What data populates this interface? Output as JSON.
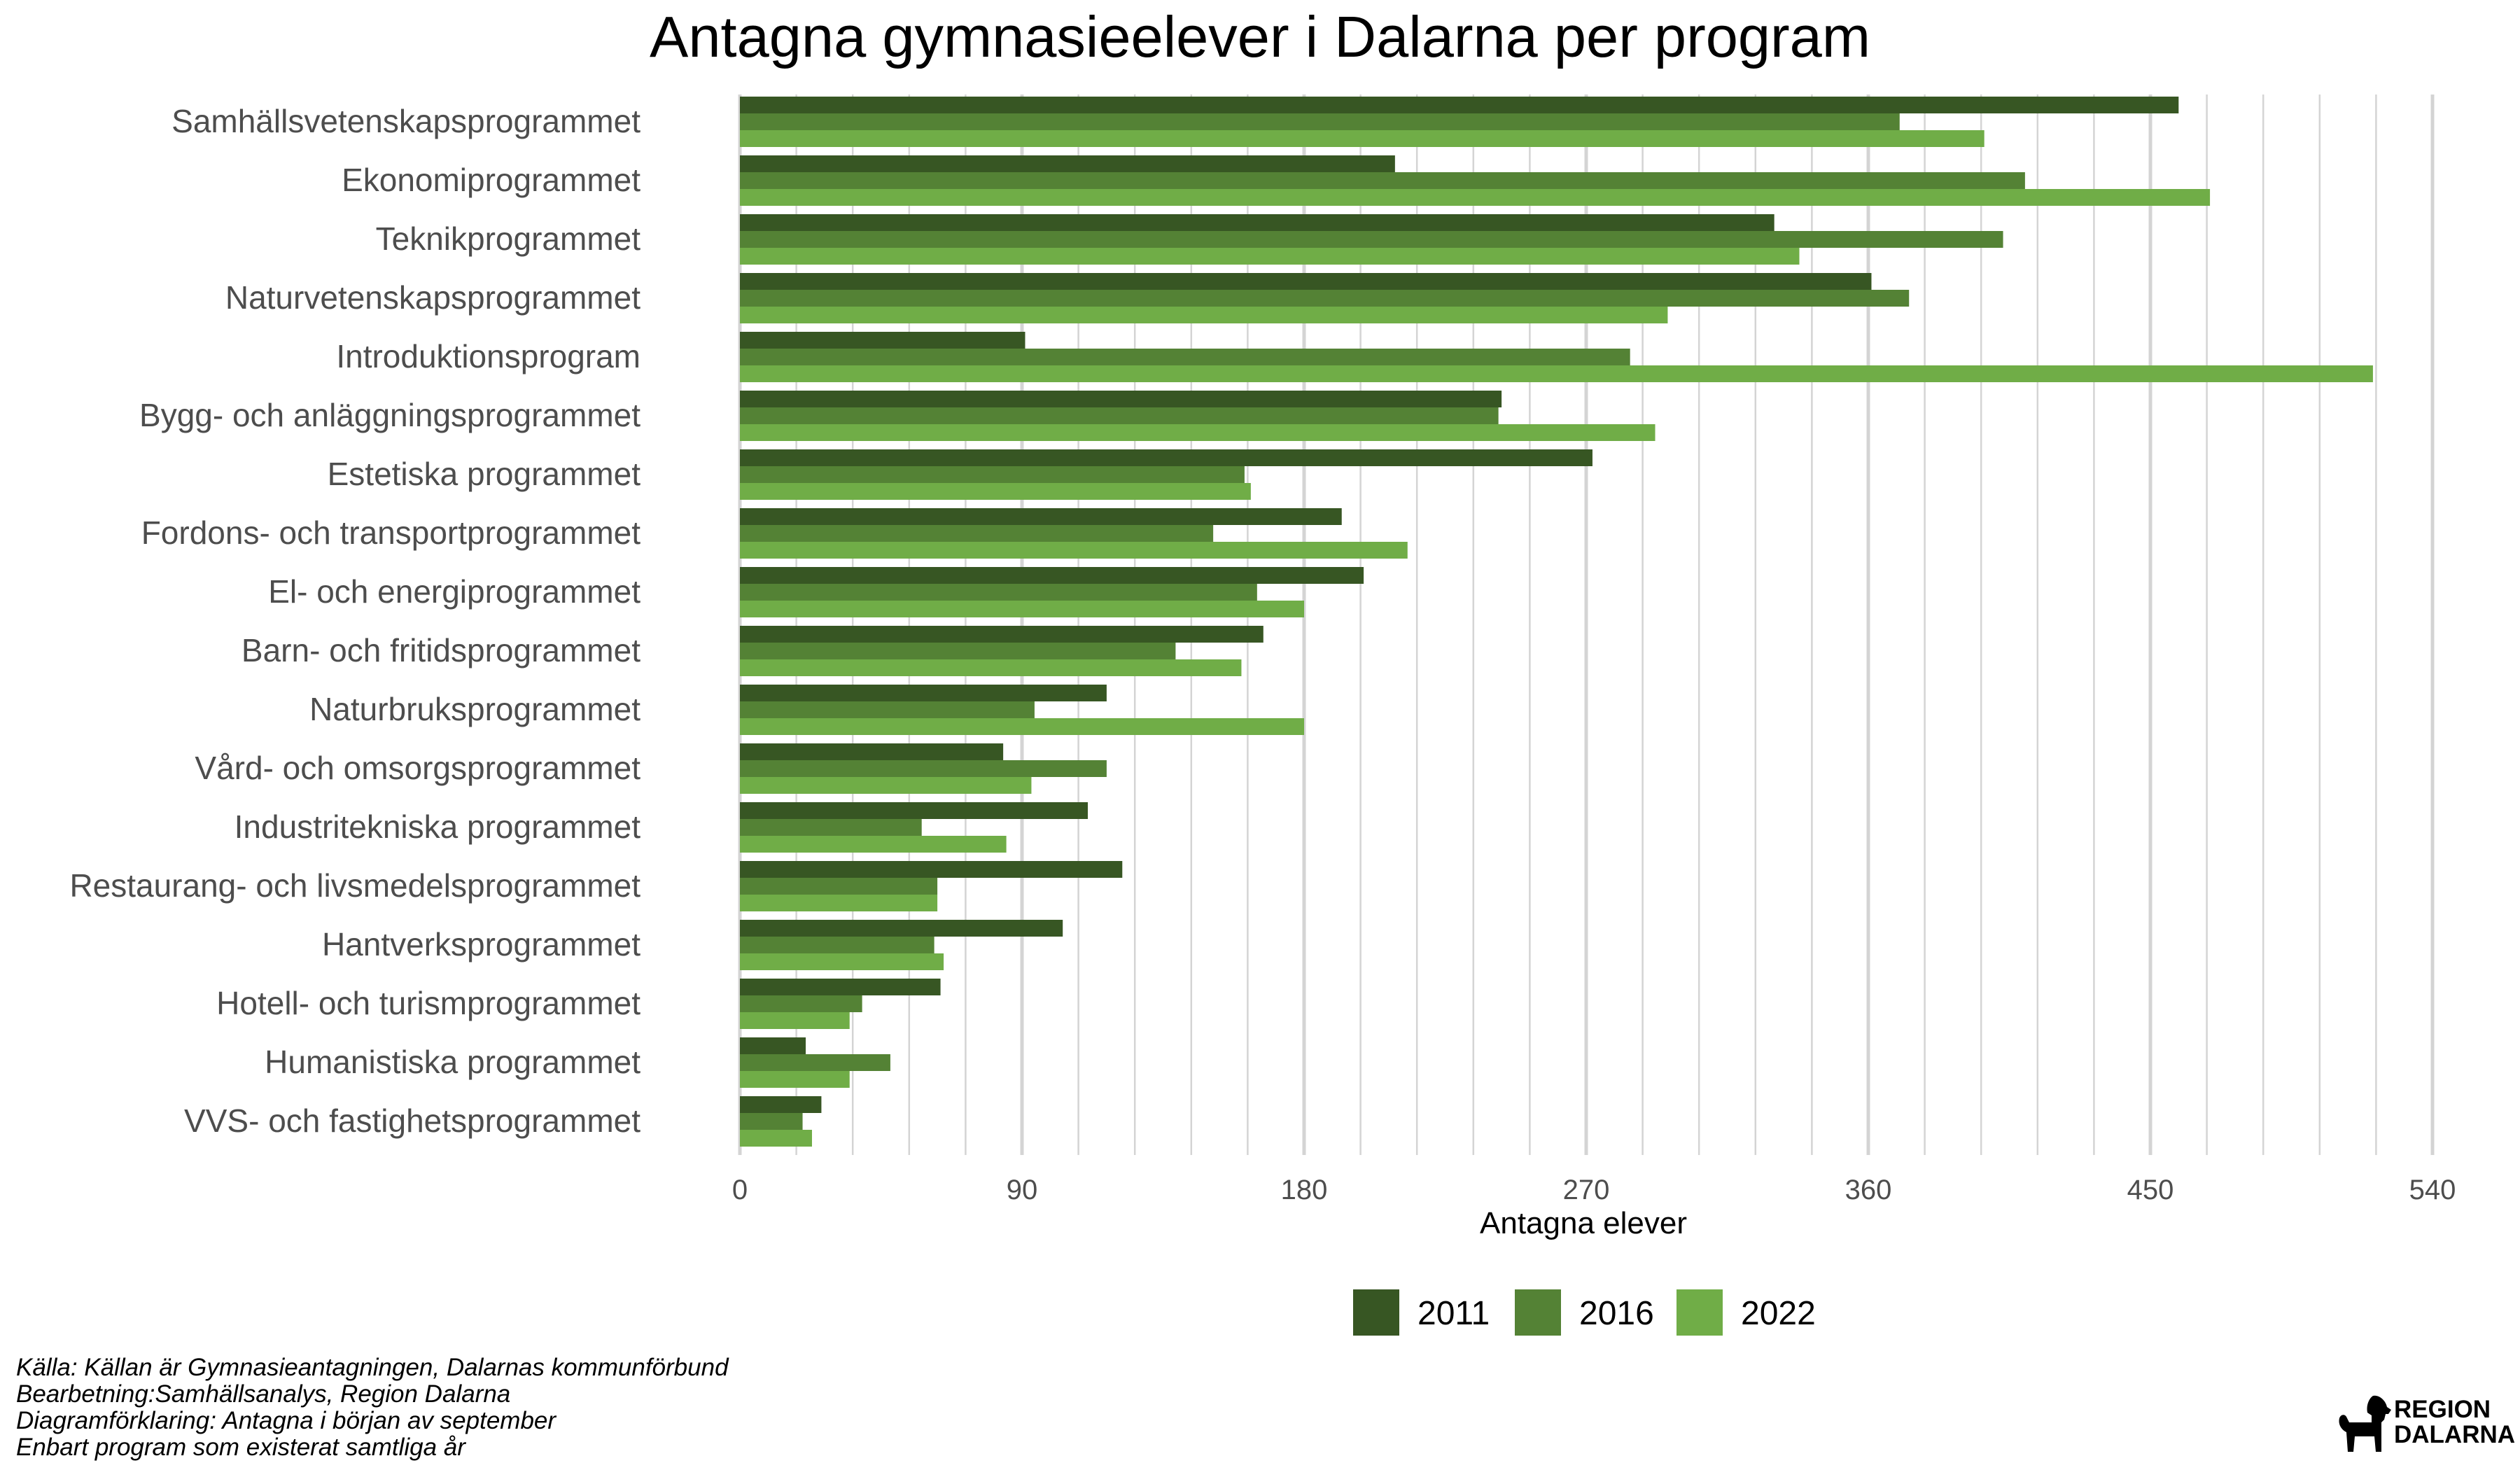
{
  "chart_data": {
    "type": "bar",
    "orientation": "horizontal",
    "title": "Antagna gymnasieelever i Dalarna per program",
    "xlabel": "Antagna elever",
    "ylabel": "",
    "xlim": [
      0,
      540
    ],
    "xticks": [
      0,
      90,
      180,
      270,
      360,
      450,
      540
    ],
    "minor_grid_step": 18,
    "grid": true,
    "legend_position": "bottom",
    "categories": [
      "Samhällsvetenskapsprogrammet",
      "Ekonomiprogrammet",
      "Teknikprogrammet",
      "Naturvetenskapsprogrammet",
      "Introduktionsprogram",
      "Bygg- och anläggningsprogrammet",
      "Estetiska programmet",
      "Fordons- och transportprogrammet",
      "El- och energiprogrammet",
      "Barn- och fritidsprogrammet",
      "Naturbruksprogrammet",
      "Vård- och omsorgsprogrammet",
      "Industritekniska programmet",
      "Restaurang- och livsmedelsprogrammet",
      "Hantverksprogrammet",
      "Hotell- och turismprogrammet",
      "Humanistiska programmet",
      "VVS- och fastighetsprogrammet"
    ],
    "series": [
      {
        "name": "2011",
        "color": "#375623",
        "values": [
          459,
          209,
          330,
          361,
          91,
          243,
          272,
          192,
          199,
          167,
          117,
          84,
          111,
          122,
          103,
          64,
          21,
          26
        ]
      },
      {
        "name": "2016",
        "color": "#548235",
        "values": [
          370,
          410,
          403,
          373,
          284,
          242,
          161,
          151,
          165,
          139,
          94,
          117,
          58,
          63,
          62,
          39,
          48,
          20
        ]
      },
      {
        "name": "2022",
        "color": "#70AD47",
        "values": [
          397,
          469,
          338,
          296,
          521,
          292,
          163,
          213,
          180,
          160,
          180,
          93,
          85,
          63,
          65,
          35,
          35,
          23
        ]
      }
    ]
  },
  "footer": {
    "line1": "Källa: Källan är Gymnasieantagningen, Dalarnas kommunförbund",
    "line2": "Bearbetning:Samhällsanalys, Region Dalarna",
    "line3": "Diagramförklaring: Antagna i början av september",
    "line4": "Enbart program som existerat samtliga år"
  },
  "logo": {
    "line1": "REGION",
    "line2": "DALARNA",
    "icon": "dala-horse-icon"
  }
}
